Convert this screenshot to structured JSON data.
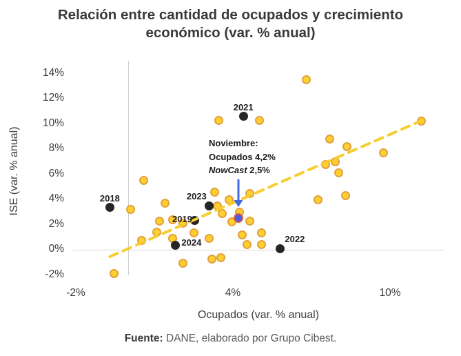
{
  "title": "Relación entre cantidad de ocupados y crecimiento económico (var. % anual)",
  "footer": {
    "source_label": "Fuente:",
    "source_text": " DANE, elaborado por Grupo Cibest."
  },
  "colors": {
    "point_fill": "#FFD02F",
    "point_stroke": "#E2A03C",
    "trend": "#F7CD30",
    "year_point": "#262626",
    "nowcast_fill": "#4A5BE8",
    "nowcast_ring": "#DE5F3B",
    "arrow": "#4169E1",
    "grid": "#cfcfcf",
    "axis_line": "#d9d9d9",
    "text": "#3d3d3d"
  },
  "chart_data": {
    "type": "scatter",
    "title": "Relación entre cantidad de ocupados y crecimiento económico (var. % anual)",
    "xlabel": "Ocupados (var. % anual)",
    "ylabel": "ISE (var. % anual)",
    "xlim": [
      -2.2,
      12.1
    ],
    "ylim": [
      -2.3,
      15.1
    ],
    "grid": {
      "vertical_at_x": 0,
      "horizontal_at_y": 0
    },
    "x_ticks": [
      {
        "value": -2,
        "label": "-2%"
      },
      {
        "value": 4,
        "label": "4%"
      },
      {
        "value": 10,
        "label": "10%"
      }
    ],
    "y_ticks": [
      {
        "value": 14,
        "label": "14%"
      },
      {
        "value": 12,
        "label": "12%"
      },
      {
        "value": 10,
        "label": "10%"
      },
      {
        "value": 8,
        "label": "8%"
      },
      {
        "value": 6,
        "label": "6%"
      },
      {
        "value": 4,
        "label": "4%"
      },
      {
        "value": 2,
        "label": "2%"
      },
      {
        "value": 0,
        "label": "0%"
      },
      {
        "value": -2,
        "label": "-2%"
      }
    ],
    "series": [
      {
        "name": "monthly-observations",
        "marker": "circle-yellow",
        "points": [
          [
            0.6,
            5.5
          ],
          [
            0.1,
            3.2
          ],
          [
            1.4,
            3.7
          ],
          [
            1.2,
            2.25
          ],
          [
            1.7,
            2.4
          ],
          [
            2.1,
            2.1
          ],
          [
            1.1,
            1.4
          ],
          [
            0.5,
            0.75
          ],
          [
            1.7,
            0.9
          ],
          [
            2.5,
            1.35
          ],
          [
            2.1,
            -1.05
          ],
          [
            -0.55,
            -1.9
          ],
          [
            3.1,
            0.9
          ],
          [
            3.2,
            -0.75
          ],
          [
            3.55,
            -0.65
          ],
          [
            3.3,
            4.6
          ],
          [
            3.4,
            3.5
          ],
          [
            3.85,
            3.95
          ],
          [
            3.6,
            2.9
          ],
          [
            4.25,
            3.0
          ],
          [
            3.95,
            2.2
          ],
          [
            4.65,
            2.3
          ],
          [
            4.65,
            4.45
          ],
          [
            4.35,
            1.2
          ],
          [
            5.1,
            1.35
          ],
          [
            4.55,
            0.4
          ],
          [
            5.1,
            0.4
          ],
          [
            3.45,
            10.25
          ],
          [
            5.0,
            10.3
          ],
          [
            6.8,
            13.5
          ],
          [
            11.2,
            10.2
          ],
          [
            7.7,
            8.8
          ],
          [
            8.35,
            8.2
          ],
          [
            9.75,
            7.7
          ],
          [
            7.9,
            7.0
          ],
          [
            7.55,
            6.75
          ],
          [
            8.05,
            6.1
          ],
          [
            7.25,
            4.0
          ],
          [
            8.3,
            4.3
          ]
        ]
      },
      {
        "name": "year-highlights",
        "marker": "circle-black",
        "points": [
          {
            "label": "2018",
            "x": -0.7,
            "y": 3.35,
            "placement": "above"
          },
          {
            "label": "2019",
            "x": 2.55,
            "y": 2.35,
            "placement": "left"
          },
          {
            "label": "2021",
            "x": 4.4,
            "y": 10.6,
            "placement": "above"
          },
          {
            "label": "2022",
            "x": 5.8,
            "y": 0.1,
            "placement": "above-right"
          },
          {
            "label": "2023",
            "x": 3.1,
            "y": 3.5,
            "placement": "above-left"
          },
          {
            "label": "2024",
            "x": 1.8,
            "y": 0.35,
            "placement": "right"
          }
        ]
      },
      {
        "name": "nowcast-november",
        "marker": "circle-blue",
        "x": 4.2,
        "y": 2.5
      }
    ],
    "trendline": {
      "x1": -0.7,
      "y1": -0.55,
      "x2": 11.2,
      "y2": 10.25,
      "style": "dashed"
    },
    "annotation": {
      "line1": "Noviembre:",
      "line2": "Ocupados 4,2%",
      "line3_italic": "NowCast",
      "line3_rest": " 2,5%",
      "arrow_x": 4.21,
      "arrow_tip_y": 3.4
    },
    "legend": null
  }
}
